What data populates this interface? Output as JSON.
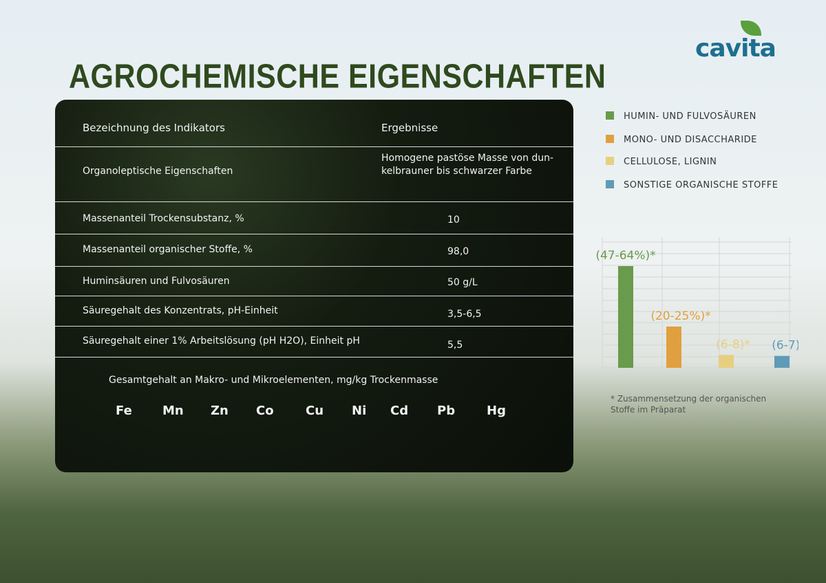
{
  "header": {
    "logo": "cavita",
    "title": "AGROCHEMISCHE EIGENSCHAFTEN"
  },
  "table": {
    "columns": [
      "Bezeichnung des Indikators",
      "Ergebnisse"
    ],
    "rows": [
      [
        "Organoleptische Eigenschaften",
        "Homogene pastöse Masse von dun-kelbrauner bis schwarzer Farbe"
      ],
      [
        "Massenanteil Trockensubstanz, %",
        "10"
      ],
      [
        "Massenanteil organischer Stoffe, %",
        "98,0"
      ],
      [
        "Huminsäuren und Fulvosäuren",
        "50 g/L"
      ],
      [
        "Säuregehalt des Konzentrats, pH-Einheit",
        "3,5-6,5"
      ],
      [
        "Säuregehalt einer 1% Arbeitslösung (pH H2O), Einheit pH",
        "5,5"
      ]
    ],
    "elements_title": "Gesamtgehalt an Makro- und Mikroelementen,  mg/kg Trockenmasse",
    "elements": [
      "Fe",
      "Mn",
      "Zn",
      "Co",
      "Cu",
      "Ni",
      "Cd",
      "Pb",
      "Hg"
    ]
  },
  "chart_data": {
    "type": "bar",
    "categories": [
      "HUMIN- UND FULVOSÄUREN",
      "MONO- UND DISACCHARIDE",
      "CELLULOSE, LIGNIN",
      "SONSTIGE ORGANISCHE STOFFE"
    ],
    "values": [
      55.5,
      22.5,
      7,
      6.5
    ],
    "value_labels": [
      "(47-64%)*",
      "(20-25%)*",
      "(6-8)*",
      "(6-7)*"
    ],
    "colors": [
      "#6a9a4c",
      "#e0a040",
      "#e6cf80",
      "#5f9bb6"
    ],
    "ylim": [
      0,
      60
    ],
    "footnote": "* Zusammensetzung der organischen Stoffe im Präparat"
  }
}
